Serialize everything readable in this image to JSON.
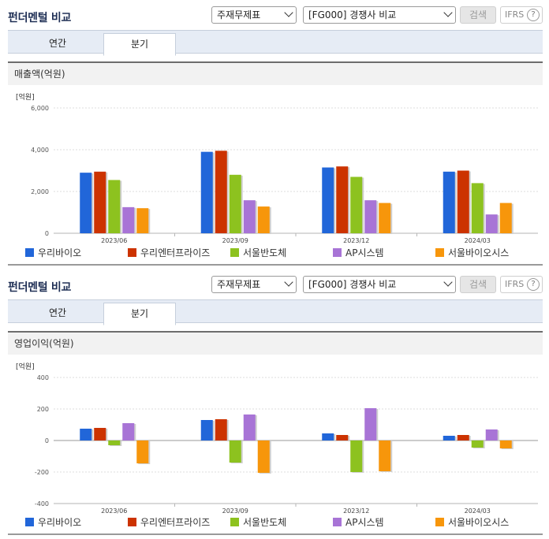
{
  "colors": {
    "series": [
      "#2166d9",
      "#cc3300",
      "#8dc21f",
      "#a874d6",
      "#f7960b"
    ]
  },
  "panels": [
    {
      "title": "펀더멘털 비교",
      "select1": "주재무제표",
      "select2": "[FG000] 경쟁사 비교",
      "search_label": "검색",
      "ifrs_label": "IFRS",
      "ifrs_help": "?",
      "tabs": [
        "연간",
        "분기"
      ],
      "active_tab": "분기",
      "subtitle": "매출액(억원)"
    },
    {
      "title": "펀더멘털 비교",
      "select1": "주재무제표",
      "select2": "[FG000] 경쟁사 비교",
      "search_label": "검색",
      "ifrs_label": "IFRS",
      "ifrs_help": "?",
      "tabs": [
        "연간",
        "분기"
      ],
      "active_tab": "분기",
      "subtitle": "영업이익(억원)"
    }
  ],
  "chart_data": [
    {
      "type": "bar",
      "ylabel": "[억원]",
      "ylim": [
        0,
        6000
      ],
      "yticks": [
        "0",
        "2,000",
        "4,000",
        "6,000"
      ],
      "ytick_values": [
        0,
        2000,
        4000,
        6000
      ],
      "categories": [
        "2023/06",
        "2023/09",
        "2023/12",
        "2024/03"
      ],
      "series": [
        {
          "name": "우리바이오",
          "values": [
            2900,
            3900,
            3150,
            2950
          ]
        },
        {
          "name": "우리엔터프라이즈",
          "values": [
            2950,
            3950,
            3200,
            3000
          ]
        },
        {
          "name": "서울반도체",
          "values": [
            2550,
            2800,
            2700,
            2400
          ]
        },
        {
          "name": "AP시스템",
          "values": [
            1250,
            1580,
            1580,
            900
          ]
        },
        {
          "name": "서울바이오시스",
          "values": [
            1200,
            1280,
            1450,
            1450
          ]
        }
      ],
      "legend_position": "bottom"
    },
    {
      "type": "bar",
      "ylabel": "[억원]",
      "ylim": [
        -400,
        400
      ],
      "yticks": [
        "-400",
        "-200",
        "0",
        "200",
        "400"
      ],
      "ytick_values": [
        -400,
        -200,
        0,
        200,
        400
      ],
      "categories": [
        "2023/06",
        "2023/09",
        "2023/12",
        "2024/03"
      ],
      "series": [
        {
          "name": "우리바이오",
          "values": [
            75,
            130,
            45,
            30
          ]
        },
        {
          "name": "우리엔터프라이즈",
          "values": [
            80,
            135,
            35,
            35
          ]
        },
        {
          "name": "서울반도체",
          "values": [
            -30,
            -140,
            -200,
            -45
          ]
        },
        {
          "name": "AP시스템",
          "values": [
            110,
            165,
            205,
            70
          ]
        },
        {
          "name": "서울바이오시스",
          "values": [
            -145,
            -205,
            -195,
            -50
          ]
        }
      ],
      "legend_position": "bottom"
    }
  ]
}
